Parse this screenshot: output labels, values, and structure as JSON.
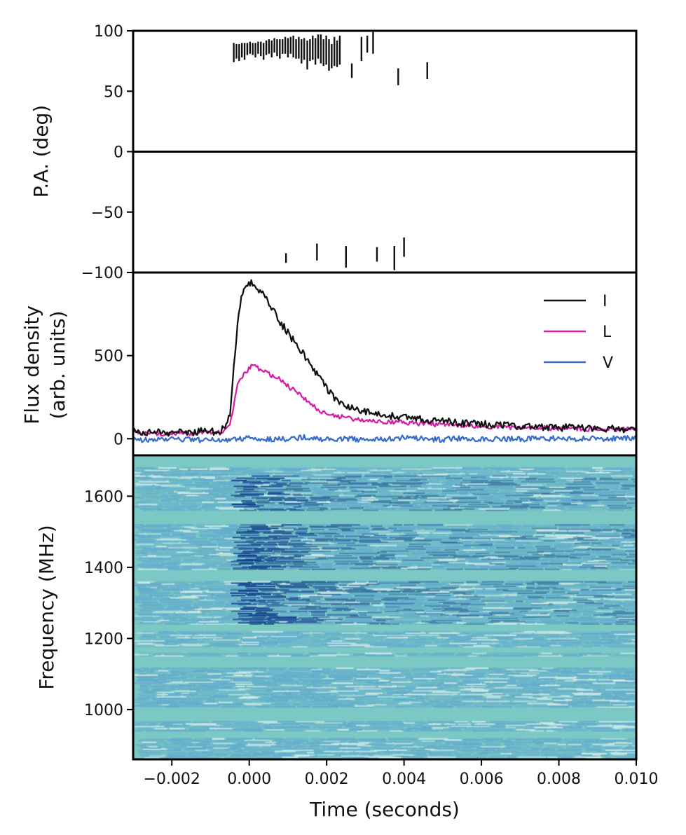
{
  "chart_data": [
    {
      "id": "pa",
      "type": "scatter",
      "ylabel": "P.A. (deg)",
      "ylim": [
        -100,
        100
      ],
      "xlim": [
        -0.003,
        0.01
      ],
      "yticks": [
        {
          "v": 100,
          "label": "100"
        },
        {
          "v": 50,
          "label": "50"
        },
        {
          "v": 0,
          "label": "0"
        },
        {
          "v": -50,
          "label": "−50"
        },
        {
          "v": -100,
          "label": "−100"
        }
      ],
      "zero_line": 0,
      "points": [
        {
          "x": -0.0004,
          "y": 82,
          "err": 8
        },
        {
          "x": -0.00033,
          "y": 83,
          "err": 6
        },
        {
          "x": -0.00026,
          "y": 82,
          "err": 7
        },
        {
          "x": -0.00019,
          "y": 84,
          "err": 6
        },
        {
          "x": -0.00012,
          "y": 83,
          "err": 7
        },
        {
          "x": -5e-05,
          "y": 85,
          "err": 5
        },
        {
          "x": 2e-05,
          "y": 86,
          "err": 5
        },
        {
          "x": 9e-05,
          "y": 85,
          "err": 5
        },
        {
          "x": 0.00016,
          "y": 84,
          "err": 6
        },
        {
          "x": 0.00023,
          "y": 86,
          "err": 5
        },
        {
          "x": 0.0003,
          "y": 85,
          "err": 6
        },
        {
          "x": 0.00037,
          "y": 83,
          "err": 7
        },
        {
          "x": 0.00044,
          "y": 86,
          "err": 6
        },
        {
          "x": 0.00051,
          "y": 87,
          "err": 6
        },
        {
          "x": 0.00058,
          "y": 85,
          "err": 7
        },
        {
          "x": 0.00065,
          "y": 88,
          "err": 6
        },
        {
          "x": 0.00072,
          "y": 86,
          "err": 7
        },
        {
          "x": 0.00079,
          "y": 85,
          "err": 8
        },
        {
          "x": 0.00086,
          "y": 87,
          "err": 6
        },
        {
          "x": 0.00093,
          "y": 88,
          "err": 7
        },
        {
          "x": 0.001,
          "y": 86,
          "err": 8
        },
        {
          "x": 0.00107,
          "y": 88,
          "err": 7
        },
        {
          "x": 0.00114,
          "y": 87,
          "err": 9
        },
        {
          "x": 0.00121,
          "y": 85,
          "err": 8
        },
        {
          "x": 0.00128,
          "y": 86,
          "err": 9
        },
        {
          "x": 0.00135,
          "y": 83,
          "err": 10
        },
        {
          "x": 0.00142,
          "y": 85,
          "err": 9
        },
        {
          "x": 0.0015,
          "y": 80,
          "err": 12
        },
        {
          "x": 0.00157,
          "y": 84,
          "err": 9
        },
        {
          "x": 0.00164,
          "y": 86,
          "err": 10
        },
        {
          "x": 0.00171,
          "y": 83,
          "err": 11
        },
        {
          "x": 0.00178,
          "y": 87,
          "err": 10
        },
        {
          "x": 0.00185,
          "y": 85,
          "err": 12
        },
        {
          "x": 0.00192,
          "y": 82,
          "err": 11
        },
        {
          "x": 0.00199,
          "y": 84,
          "err": 12
        },
        {
          "x": 0.00206,
          "y": 80,
          "err": 13
        },
        {
          "x": 0.00213,
          "y": 79,
          "err": 10
        },
        {
          "x": 0.0022,
          "y": 83,
          "err": 12
        },
        {
          "x": 0.00227,
          "y": 81,
          "err": 11
        },
        {
          "x": 0.00234,
          "y": 84,
          "err": 12
        },
        {
          "x": 0.00265,
          "y": 67,
          "err": 6
        },
        {
          "x": 0.0029,
          "y": 85,
          "err": 10
        },
        {
          "x": 0.00305,
          "y": 89,
          "err": 7
        },
        {
          "x": 0.0032,
          "y": 90,
          "err": 9
        },
        {
          "x": 0.00385,
          "y": 62,
          "err": 7
        },
        {
          "x": 0.0046,
          "y": 67,
          "err": 7
        },
        {
          "x": 0.00095,
          "y": -88,
          "err": 4
        },
        {
          "x": 0.00175,
          "y": -83,
          "err": 7
        },
        {
          "x": 0.0025,
          "y": -87,
          "err": 9
        },
        {
          "x": 0.0033,
          "y": -85,
          "err": 6
        },
        {
          "x": 0.00375,
          "y": -88,
          "err": 10
        },
        {
          "x": 0.004,
          "y": -79,
          "err": 8
        }
      ]
    },
    {
      "id": "flux",
      "type": "line",
      "ylabel": "Flux density (arb. units)",
      "ylabel_lines": [
        "Flux density",
        "(arb. units)"
      ],
      "ylim": [
        -100,
        1000
      ],
      "xlim": [
        -0.003,
        0.01
      ],
      "yticks": [
        {
          "v": 500,
          "label": "500"
        },
        {
          "v": 0,
          "label": "0"
        }
      ],
      "legend": {
        "placement": "top-right"
      },
      "series": [
        {
          "name": "I",
          "color": "#111111",
          "points": [
            [
              -0.003,
              42
            ],
            [
              -0.0027,
              40
            ],
            [
              -0.0024,
              44
            ],
            [
              -0.0021,
              38
            ],
            [
              -0.0018,
              45
            ],
            [
              -0.0015,
              40
            ],
            [
              -0.0012,
              46
            ],
            [
              -0.0009,
              41
            ],
            [
              -0.0007,
              55
            ],
            [
              -0.0005,
              130
            ],
            [
              -0.0004,
              420
            ],
            [
              -0.0003,
              700
            ],
            [
              -0.0002,
              860
            ],
            [
              -0.0001,
              920
            ],
            [
              0.0,
              940
            ],
            [
              0.0001,
              935
            ],
            [
              0.0002,
              900
            ],
            [
              0.0004,
              860
            ],
            [
              0.0006,
              780
            ],
            [
              0.0008,
              700
            ],
            [
              0.001,
              640
            ],
            [
              0.0012,
              570
            ],
            [
              0.0014,
              510
            ],
            [
              0.0016,
              450
            ],
            [
              0.0018,
              370
            ],
            [
              0.002,
              300
            ],
            [
              0.0022,
              250
            ],
            [
              0.0024,
              210
            ],
            [
              0.0026,
              190
            ],
            [
              0.003,
              160
            ],
            [
              0.0034,
              145
            ],
            [
              0.0038,
              135
            ],
            [
              0.0042,
              125
            ],
            [
              0.0046,
              115
            ],
            [
              0.005,
              105
            ],
            [
              0.0055,
              95
            ],
            [
              0.006,
              90
            ],
            [
              0.0065,
              82
            ],
            [
              0.007,
              78
            ],
            [
              0.0075,
              72
            ],
            [
              0.008,
              68
            ],
            [
              0.0085,
              65
            ],
            [
              0.009,
              62
            ],
            [
              0.0095,
              58
            ],
            [
              0.01,
              55
            ]
          ]
        },
        {
          "name": "L",
          "color": "#d61fa7",
          "points": [
            [
              -0.003,
              38
            ],
            [
              -0.0027,
              30
            ],
            [
              -0.0024,
              34
            ],
            [
              -0.0021,
              28
            ],
            [
              -0.0018,
              36
            ],
            [
              -0.0015,
              30
            ],
            [
              -0.0012,
              35
            ],
            [
              -0.0009,
              32
            ],
            [
              -0.0007,
              38
            ],
            [
              -0.0005,
              70
            ],
            [
              -0.0004,
              200
            ],
            [
              -0.0003,
              320
            ],
            [
              -0.0002,
              370
            ],
            [
              -0.0001,
              390
            ],
            [
              0.0,
              430
            ],
            [
              0.0001,
              440
            ],
            [
              0.0002,
              425
            ],
            [
              0.0004,
              400
            ],
            [
              0.0006,
              380
            ],
            [
              0.0008,
              355
            ],
            [
              0.001,
              315
            ],
            [
              0.0012,
              285
            ],
            [
              0.0014,
              250
            ],
            [
              0.0016,
              205
            ],
            [
              0.0018,
              170
            ],
            [
              0.002,
              150
            ],
            [
              0.0022,
              140
            ],
            [
              0.0024,
              130
            ],
            [
              0.0026,
              120
            ],
            [
              0.003,
              110
            ],
            [
              0.0034,
              105
            ],
            [
              0.0038,
              100
            ],
            [
              0.0042,
              95
            ],
            [
              0.0046,
              90
            ],
            [
              0.005,
              85
            ],
            [
              0.0055,
              80
            ],
            [
              0.006,
              75
            ],
            [
              0.0065,
              70
            ],
            [
              0.007,
              68
            ],
            [
              0.0075,
              65
            ],
            [
              0.008,
              62
            ],
            [
              0.0085,
              60
            ],
            [
              0.009,
              58
            ],
            [
              0.0095,
              56
            ],
            [
              0.01,
              55
            ]
          ]
        },
        {
          "name": "V",
          "color": "#3a6cc9",
          "points": [
            [
              -0.003,
              -5
            ],
            [
              -0.0025,
              -8
            ],
            [
              -0.002,
              -3
            ],
            [
              -0.0015,
              -6
            ],
            [
              -0.001,
              -10
            ],
            [
              -0.0005,
              -5
            ],
            [
              0.0,
              5
            ],
            [
              0.0005,
              -5
            ],
            [
              0.001,
              0
            ],
            [
              0.0015,
              10
            ],
            [
              0.002,
              -5
            ],
            [
              0.0025,
              0
            ],
            [
              0.003,
              -8
            ],
            [
              0.0035,
              -3
            ],
            [
              0.004,
              5
            ],
            [
              0.0045,
              0
            ],
            [
              0.005,
              -5
            ],
            [
              0.0055,
              3
            ],
            [
              0.006,
              -2
            ],
            [
              0.0065,
              0
            ],
            [
              0.007,
              -3
            ],
            [
              0.0075,
              2
            ],
            [
              0.008,
              0
            ],
            [
              0.0085,
              -2
            ],
            [
              0.009,
              0
            ],
            [
              0.0095,
              3
            ],
            [
              0.01,
              0
            ]
          ]
        }
      ]
    },
    {
      "id": "dynspec",
      "type": "heatmap",
      "ylabel": "Frequency (MHz)",
      "xlabel": "Time (seconds)",
      "ylim": [
        860,
        1715
      ],
      "xlim": [
        -0.003,
        0.01
      ],
      "yticks": [
        {
          "v": 1600,
          "label": "1600"
        },
        {
          "v": 1400,
          "label": "1400"
        },
        {
          "v": 1200,
          "label": "1200"
        },
        {
          "v": 1000,
          "label": "1000"
        }
      ],
      "xticks": [
        {
          "v": -0.002,
          "label": "−0.002"
        },
        {
          "v": 0.0,
          "label": "0.000"
        },
        {
          "v": 0.002,
          "label": "0.002"
        },
        {
          "v": 0.004,
          "label": "0.004"
        },
        {
          "v": 0.006,
          "label": "0.006"
        },
        {
          "v": 0.008,
          "label": "0.008"
        },
        {
          "v": 0.01,
          "label": "0.010"
        }
      ],
      "background_color": "#7cc8c4",
      "noise_color": "#5fa7cf",
      "burst_color": "#123f8f",
      "flagged_bands_mhz": [
        [
          1680,
          1715
        ],
        [
          1520,
          1560
        ],
        [
          1362,
          1392
        ],
        [
          1220,
          1240
        ],
        [
          1160,
          1176
        ],
        [
          1118,
          1150
        ],
        [
          968,
          1005
        ],
        [
          920,
          940
        ]
      ],
      "burst_start_s": -0.0005,
      "burst_peak_s": 0.0,
      "burst_freq_range_mhz": [
        1240,
        1660
      ]
    }
  ]
}
